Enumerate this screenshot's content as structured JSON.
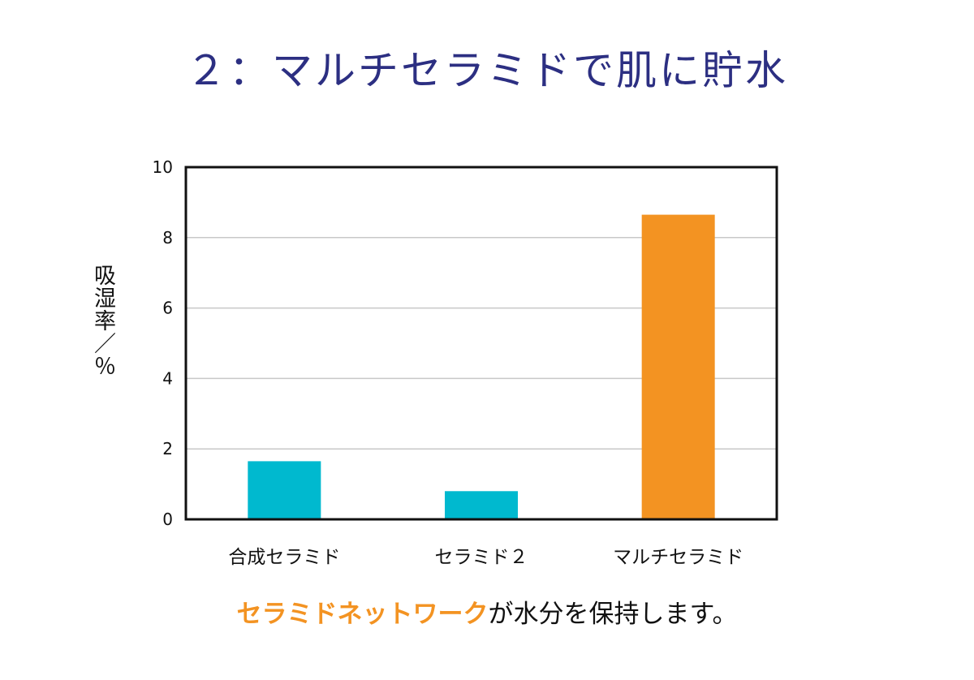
{
  "title": "２：マルチセラミドで肌に貯水",
  "caption": {
    "highlight": "セラミドネットワーク",
    "rest": "が水分を保持します。"
  },
  "chart_data": {
    "type": "bar",
    "categories": [
      "合成セラミド",
      "セラミド２",
      "マルチセラミド"
    ],
    "values": [
      1.65,
      0.8,
      8.65
    ],
    "colors": [
      "#00b9cf",
      "#00b9cf",
      "#f39322"
    ],
    "ylabel": "吸湿率／％",
    "ylim": [
      0,
      10
    ],
    "yticks": [
      0,
      2,
      4,
      6,
      8,
      10
    ],
    "grid": true,
    "legend": "none"
  }
}
